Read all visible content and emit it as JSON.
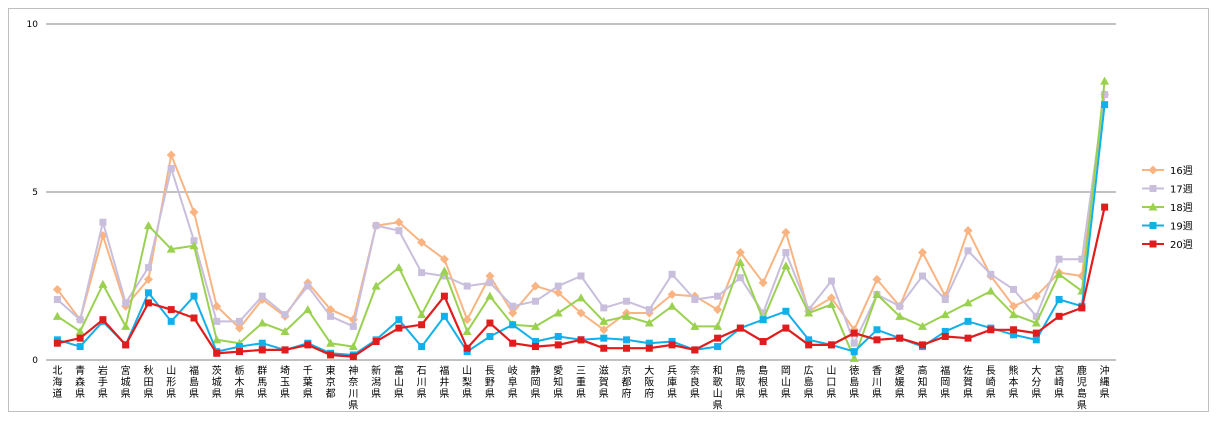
{
  "chart_data": {
    "type": "line",
    "categories": [
      "北海道",
      "青森県",
      "岩手県",
      "宮城県",
      "秋田県",
      "山形県",
      "福島県",
      "茨城県",
      "栃木県",
      "群馬県",
      "埼玉県",
      "千葉県",
      "東京都",
      "神奈川県",
      "新潟県",
      "富山県",
      "石川県",
      "福井県",
      "山梨県",
      "長野県",
      "岐阜県",
      "静岡県",
      "愛知県",
      "三重県",
      "滋賀県",
      "京都府",
      "大阪府",
      "兵庫県",
      "奈良県",
      "和歌山県",
      "鳥取県",
      "島根県",
      "岡山県",
      "広島県",
      "山口県",
      "徳島県",
      "香川県",
      "愛媛県",
      "高知県",
      "福岡県",
      "佐賀県",
      "長崎県",
      "熊本県",
      "大分県",
      "宮崎県",
      "鹿児島県",
      "沖縄県"
    ],
    "ylim": [
      0,
      10
    ],
    "yticks": [
      0,
      5,
      10
    ],
    "grid": "horizontal",
    "legend_position": "right",
    "series": [
      {
        "name": "16週",
        "color": "#f9b482",
        "marker": "diamond",
        "values": [
          2.1,
          1.2,
          3.7,
          1.6,
          2.4,
          6.1,
          4.4,
          1.6,
          0.95,
          1.8,
          1.3,
          2.3,
          1.5,
          1.2,
          4.0,
          4.1,
          3.5,
          3.0,
          1.2,
          2.5,
          1.4,
          2.2,
          2.0,
          1.4,
          0.9,
          1.4,
          1.4,
          1.95,
          1.9,
          1.5,
          3.2,
          2.3,
          3.8,
          1.45,
          1.85,
          0.9,
          2.4,
          1.6,
          3.2,
          1.9,
          3.85,
          2.5,
          1.6,
          1.9,
          2.6,
          2.5,
          7.9
        ]
      },
      {
        "name": "17週",
        "color": "#c9bfdc",
        "marker": "square",
        "values": [
          1.8,
          1.2,
          4.1,
          1.7,
          2.75,
          5.7,
          3.55,
          1.15,
          1.15,
          1.9,
          1.35,
          2.2,
          1.3,
          1.0,
          4.0,
          3.85,
          2.6,
          2.5,
          2.2,
          2.3,
          1.6,
          1.75,
          2.2,
          2.5,
          1.55,
          1.75,
          1.5,
          2.55,
          1.8,
          1.9,
          2.45,
          1.4,
          3.2,
          1.5,
          2.35,
          0.5,
          1.95,
          1.6,
          2.5,
          1.8,
          3.25,
          2.55,
          2.1,
          1.3,
          3.0,
          3.0,
          7.9
        ]
      },
      {
        "name": "18週",
        "color": "#9bd150",
        "marker": "triangle",
        "values": [
          1.3,
          0.85,
          2.25,
          1.0,
          4.0,
          3.3,
          3.4,
          0.6,
          0.5,
          1.1,
          0.85,
          1.5,
          0.5,
          0.4,
          2.2,
          2.75,
          1.35,
          2.65,
          0.85,
          1.9,
          1.05,
          1.0,
          1.4,
          1.85,
          1.15,
          1.3,
          1.1,
          1.6,
          1.0,
          1.0,
          2.9,
          1.2,
          2.8,
          1.4,
          1.65,
          0.05,
          1.95,
          1.3,
          1.0,
          1.35,
          1.7,
          2.05,
          1.35,
          1.1,
          2.55,
          2.05,
          8.3
        ]
      },
      {
        "name": "19週",
        "color": "#12b0ea",
        "marker": "square",
        "values": [
          0.6,
          0.4,
          1.15,
          0.45,
          2.0,
          1.15,
          1.9,
          0.25,
          0.4,
          0.5,
          0.3,
          0.5,
          0.2,
          0.15,
          0.6,
          1.2,
          0.4,
          1.3,
          0.25,
          0.7,
          1.05,
          0.55,
          0.7,
          0.6,
          0.65,
          0.6,
          0.5,
          0.55,
          0.3,
          0.4,
          0.95,
          1.2,
          1.45,
          0.6,
          0.45,
          0.25,
          0.9,
          0.65,
          0.4,
          0.85,
          1.15,
          0.95,
          0.75,
          0.6,
          1.8,
          1.6,
          7.6
        ]
      },
      {
        "name": "20週",
        "color": "#e01c1c",
        "marker": "square",
        "values": [
          0.5,
          0.65,
          1.2,
          0.45,
          1.7,
          1.5,
          1.25,
          0.2,
          0.25,
          0.3,
          0.3,
          0.45,
          0.15,
          0.1,
          0.55,
          0.95,
          1.05,
          1.9,
          0.35,
          1.1,
          0.5,
          0.4,
          0.45,
          0.6,
          0.35,
          0.35,
          0.35,
          0.45,
          0.3,
          0.65,
          0.95,
          0.55,
          0.95,
          0.45,
          0.45,
          0.8,
          0.6,
          0.65,
          0.45,
          0.7,
          0.65,
          0.9,
          0.9,
          0.8,
          1.3,
          1.55,
          4.55
        ]
      }
    ]
  }
}
